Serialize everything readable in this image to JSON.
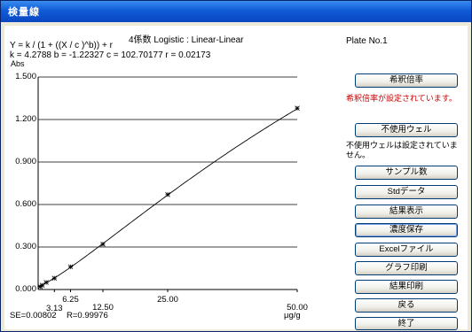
{
  "window": {
    "title": "検量線"
  },
  "chart": {
    "formula_line1": "Y = k / (1 + ((X / c )^b)) + r",
    "formula_line2": "k = 4.2788  b = -1.22327  c = 102.70177  r = 0.02173",
    "se_text": "SE=0.00802",
    "r_text": "R=0.99976",
    "x_unit": "μg/g"
  },
  "side": {
    "plate_label": "Plate No.1",
    "dilution_button": "希釈倍率",
    "dilution_message": "希釈倍率が設定されています。",
    "unused_well_button": "不使用ウェル",
    "unused_well_message": "不使用ウェルは設定されていません。",
    "sample_count_button": "サンプル数",
    "std_data_button": "Stdデータ",
    "result_display_button": "結果表示",
    "conc_save_button": "濃度保存",
    "excel_file_button": "Excelファイル",
    "graph_print_button": "グラフ印刷",
    "result_print_button": "結果印刷",
    "back_button": "戻る",
    "exit_button": "終了"
  },
  "chart_data": {
    "type": "scatter",
    "title": "4係数 Logistic : Linear-Linear",
    "xlabel": "μg/g",
    "ylabel": "Abs",
    "xlim": [
      0,
      50
    ],
    "ylim": [
      0,
      1.5
    ],
    "x_ticks": [
      "3.13",
      "6.25",
      "12.50",
      "25.00",
      "50.00"
    ],
    "x_tick_values": [
      3.13,
      6.25,
      12.5,
      25,
      50
    ],
    "y_ticks": [
      "0.000",
      "0.300",
      "0.600",
      "0.900",
      "1.200",
      "1.500"
    ],
    "y_tick_values": [
      0,
      0.3,
      0.6,
      0.9,
      1.2,
      1.5
    ],
    "grid": true,
    "series": [
      {
        "points": [
          {
            "x": 0.39,
            "y": 0.02
          },
          {
            "x": 0.78,
            "y": 0.03
          },
          {
            "x": 1.56,
            "y": 0.05
          },
          {
            "x": 3.13,
            "y": 0.08
          },
          {
            "x": 6.25,
            "y": 0.16
          },
          {
            "x": 12.5,
            "y": 0.32
          },
          {
            "x": 25,
            "y": 0.67
          },
          {
            "x": 50,
            "y": 1.28
          }
        ]
      }
    ],
    "fit_curve": {
      "model": "4-parameter logistic",
      "k": 4.2788,
      "b": -1.22327,
      "c": 102.70177,
      "r": 0.02173
    }
  }
}
